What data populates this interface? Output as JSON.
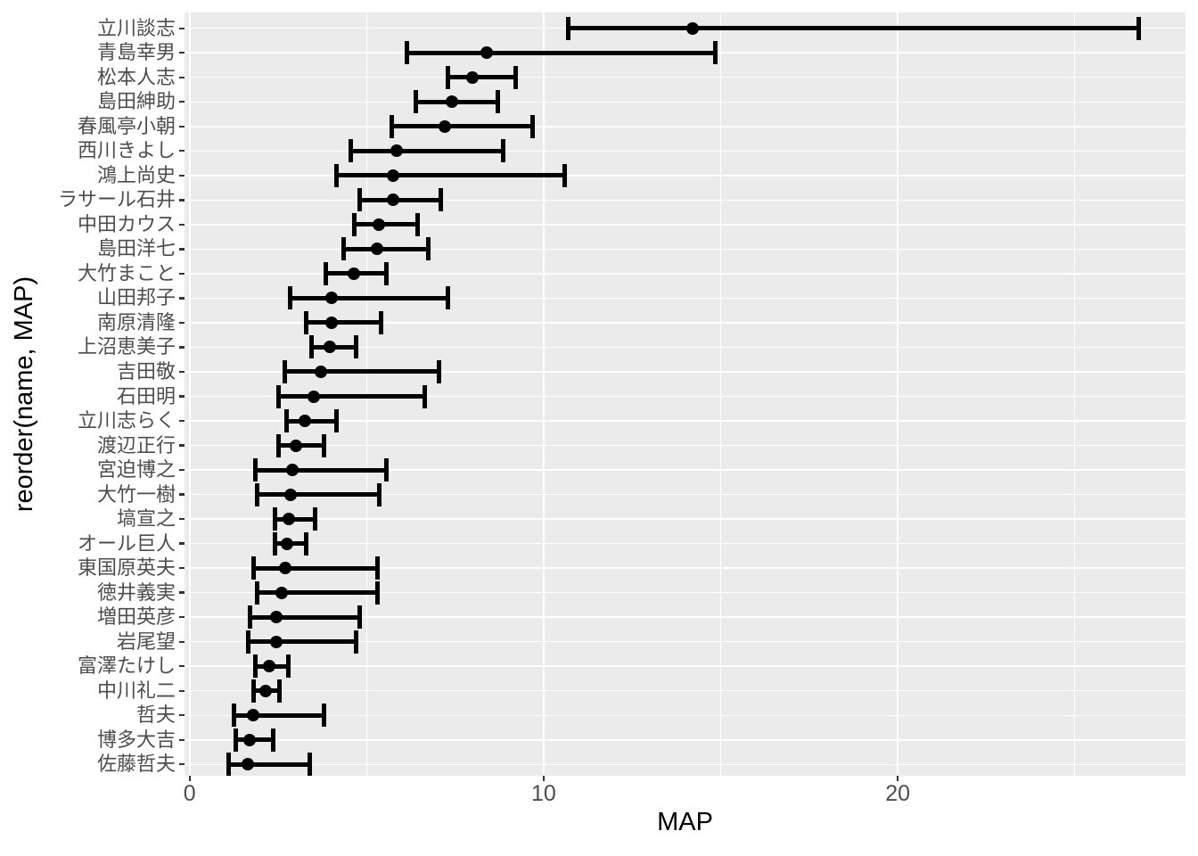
{
  "figure": {
    "xlabel": "MAP",
    "ylabel": "reorder(name, MAP)"
  },
  "colors": {
    "background": "#FFFFFF",
    "panel_background": "#EBEBEB",
    "gridline": "#FFFFFF",
    "geom": "#000000",
    "axis_text": "#4D4D4D",
    "tick_mark": "#333333",
    "axis_title": "#000000"
  },
  "chart_data": {
    "type": "scatter",
    "subtype": "horizontal pointrange (point estimate with error bars, ggplot2 style)",
    "title": "",
    "xlabel": "MAP",
    "ylabel": "reorder(name, MAP)",
    "xlim": [
      -0.14,
      28.13
    ],
    "x_major_ticks": [
      0,
      10,
      20
    ],
    "x_tick_labels": [
      "0",
      "10",
      "20"
    ],
    "x_minor_gridlines": [
      5,
      15,
      25
    ],
    "grid": "on",
    "legend": "none",
    "categories": [
      "立川談志",
      "青島幸男",
      "松本人志",
      "島田紳助",
      "春風亭小朝",
      "西川きよし",
      "鴻上尚史",
      "ラサール石井",
      "中田カウス",
      "島田洋七",
      "大竹まこと",
      "山田邦子",
      "南原清隆",
      "上沼恵美子",
      "吉田敬",
      "石田明",
      "立川志らく",
      "渡辺正行",
      "宮迫博之",
      "大竹一樹",
      "塙宣之",
      "オール巨人",
      "東国原英夫",
      "徳井義実",
      "増田英彦",
      "岩尾望",
      "富澤たけし",
      "中川礼二",
      "哲夫",
      "博多大吉",
      "佐藤哲夫"
    ],
    "series": [
      {
        "name": "lower",
        "values": [
          10.7,
          6.15,
          7.3,
          6.4,
          5.7,
          4.55,
          4.15,
          4.8,
          4.65,
          4.35,
          3.85,
          2.85,
          3.3,
          3.45,
          2.7,
          2.5,
          2.75,
          2.5,
          1.85,
          1.9,
          2.4,
          2.4,
          1.8,
          1.9,
          1.7,
          1.65,
          1.85,
          1.8,
          1.25,
          1.3,
          1.1
        ]
      },
      {
        "name": "point",
        "values": [
          14.2,
          8.4,
          8.0,
          7.4,
          7.2,
          5.85,
          5.75,
          5.75,
          5.35,
          5.3,
          4.65,
          4.0,
          4.0,
          3.95,
          3.7,
          3.5,
          3.25,
          3.0,
          2.9,
          2.85,
          2.8,
          2.75,
          2.7,
          2.6,
          2.45,
          2.45,
          2.25,
          2.15,
          1.8,
          1.7,
          1.65
        ]
      },
      {
        "name": "upper",
        "values": [
          26.8,
          14.85,
          9.2,
          8.7,
          9.7,
          8.85,
          10.6,
          7.1,
          6.45,
          6.75,
          5.55,
          7.3,
          5.4,
          4.7,
          7.05,
          6.65,
          4.15,
          3.8,
          5.55,
          5.35,
          3.55,
          3.3,
          5.3,
          5.3,
          4.8,
          4.7,
          2.8,
          2.55,
          3.8,
          2.35,
          3.4
        ]
      }
    ]
  }
}
